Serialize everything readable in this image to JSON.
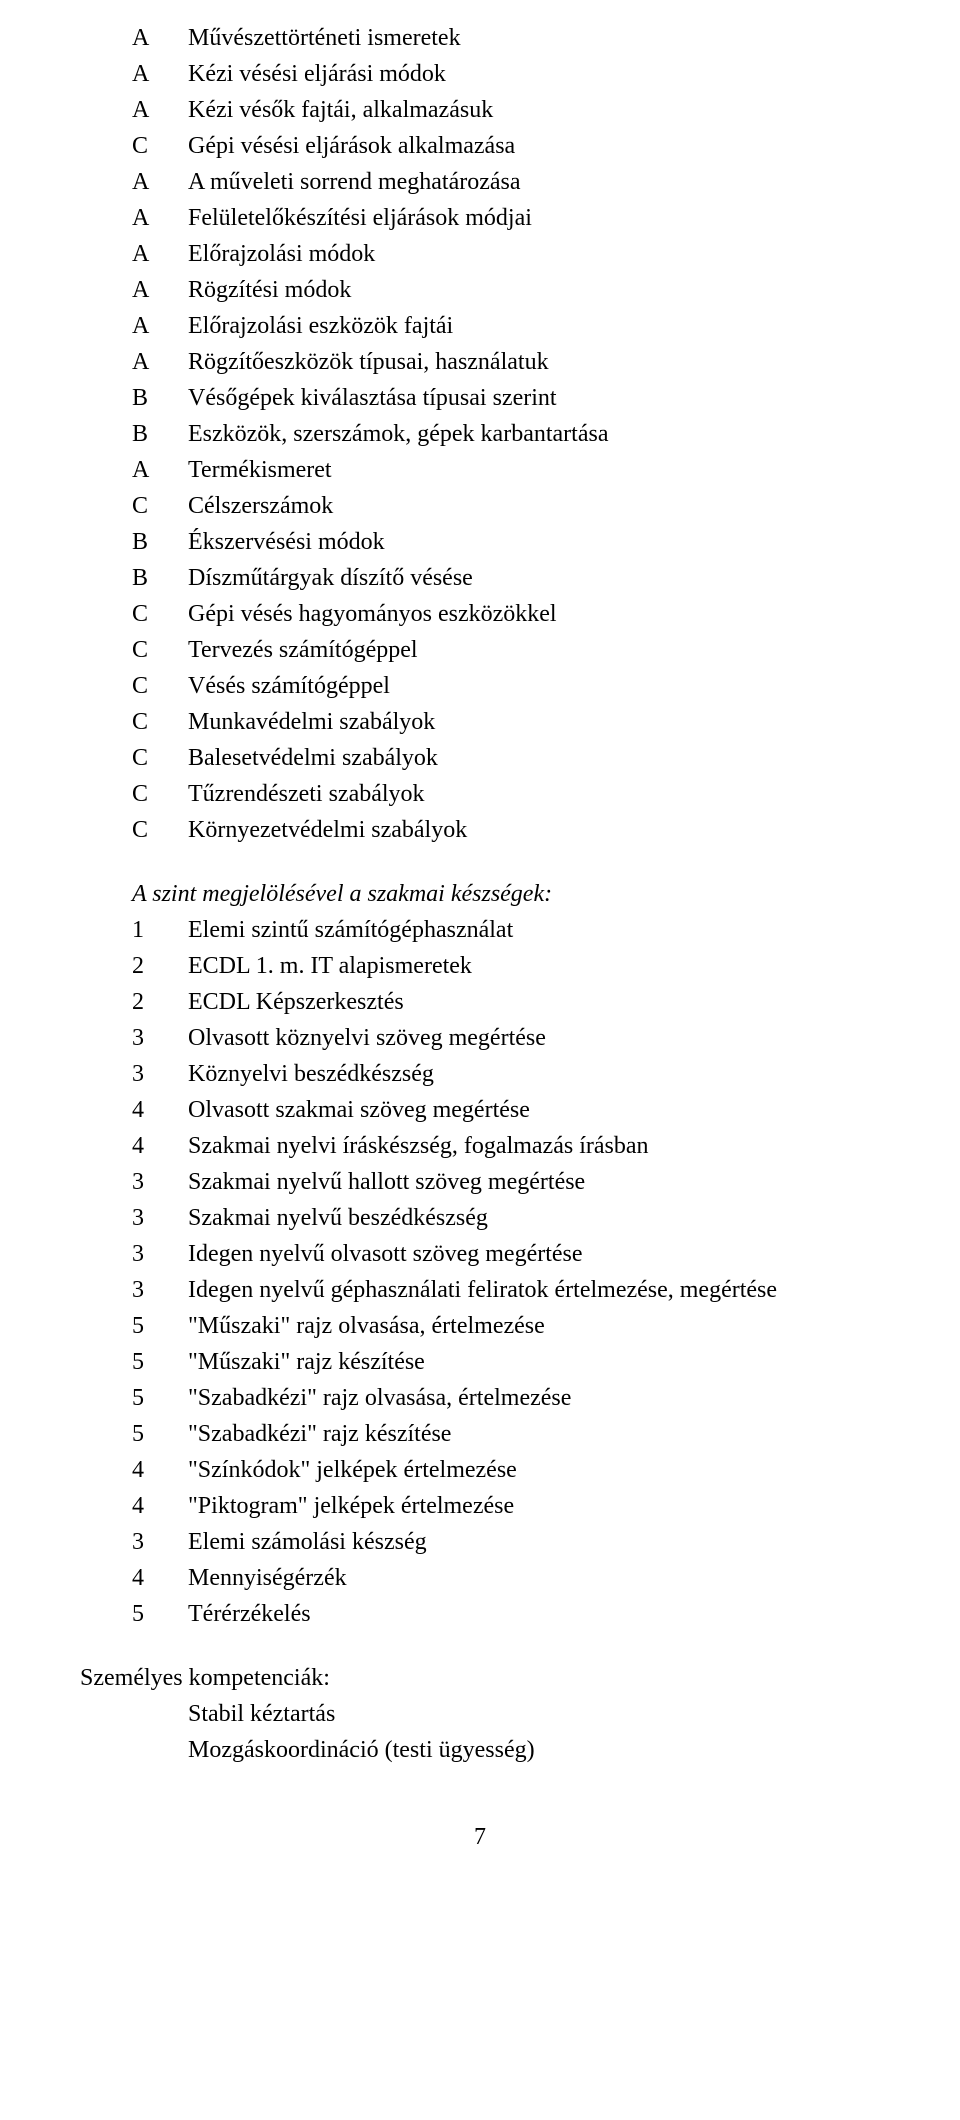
{
  "page_number": "7",
  "list1": [
    {
      "k": "A",
      "t": "Művészettörténeti ismeretek"
    },
    {
      "k": "A",
      "t": "Kézi vésési eljárási módok"
    },
    {
      "k": "A",
      "t": "Kézi vésők fajtái, alkalmazásuk"
    },
    {
      "k": "C",
      "t": "Gépi vésési eljárások alkalmazása"
    },
    {
      "k": "A",
      "t": "A műveleti sorrend meghatározása"
    },
    {
      "k": "A",
      "t": "Felületelőkészítési eljárások módjai"
    },
    {
      "k": "A",
      "t": "Előrajzolási módok"
    },
    {
      "k": "A",
      "t": "Rögzítési módok"
    },
    {
      "k": "A",
      "t": "Előrajzolási eszközök fajtái"
    },
    {
      "k": "A",
      "t": "Rögzítőeszközök típusai, használatuk"
    },
    {
      "k": "B",
      "t": "Vésőgépek kiválasztása típusai szerint"
    },
    {
      "k": "B",
      "t": "Eszközök, szerszámok, gépek karbantartása"
    },
    {
      "k": "A",
      "t": "Termékismeret"
    },
    {
      "k": "C",
      "t": "Célszerszámok"
    },
    {
      "k": "B",
      "t": "Ékszervésési módok"
    },
    {
      "k": "B",
      "t": "Díszműtárgyak díszítő vésése"
    },
    {
      "k": "C",
      "t": "Gépi vésés hagyományos eszközökkel"
    },
    {
      "k": "C",
      "t": "Tervezés számítógéppel"
    },
    {
      "k": "C",
      "t": "Vésés számítógéppel"
    },
    {
      "k": "C",
      "t": "Munkavédelmi szabályok"
    },
    {
      "k": "C",
      "t": "Balesetvédelmi szabályok"
    },
    {
      "k": "C",
      "t": "Tűzrendészeti szabályok"
    },
    {
      "k": "C",
      "t": "Környezetvédelmi szabályok"
    }
  ],
  "heading2": "A szint megjelölésével a szakmai készségek:",
  "list2": [
    {
      "k": "1",
      "t": "Elemi szintű számítógéphasználat"
    },
    {
      "k": "2",
      "t": "ECDL 1. m. IT alapismeretek"
    },
    {
      "k": "2",
      "t": "ECDL Képszerkesztés"
    },
    {
      "k": "3",
      "t": "Olvasott köznyelvi szöveg megértése"
    },
    {
      "k": "3",
      "t": "Köznyelvi beszédkészség"
    },
    {
      "k": "4",
      "t": "Olvasott szakmai szöveg megértése"
    },
    {
      "k": "4",
      "t": "Szakmai nyelvi íráskészség, fogalmazás írásban"
    },
    {
      "k": "3",
      "t": "Szakmai nyelvű hallott szöveg megértése"
    },
    {
      "k": "3",
      "t": "Szakmai nyelvű beszédkészség"
    },
    {
      "k": "3",
      "t": "Idegen nyelvű olvasott szöveg megértése"
    },
    {
      "k": "3",
      "t": "Idegen nyelvű géphasználati feliratok értelmezése, megértése"
    },
    {
      "k": "5",
      "t": "\"Műszaki\" rajz olvasása, értelmezése"
    },
    {
      "k": "5",
      "t": "\"Műszaki\" rajz készítése"
    },
    {
      "k": "5",
      "t": "\"Szabadkézi\" rajz olvasása, értelmezése"
    },
    {
      "k": "5",
      "t": "\"Szabadkézi\" rajz készítése"
    },
    {
      "k": "4",
      "t": "\"Színkódok\" jelképek értelmezése"
    },
    {
      "k": "4",
      "t": "\"Piktogram\" jelképek értelmezése"
    },
    {
      "k": "3",
      "t": "Elemi számolási készség"
    },
    {
      "k": "4",
      "t": "Mennyiségérzék"
    },
    {
      "k": "5",
      "t": "Térérzékelés"
    }
  ],
  "heading3": "Személyes kompetenciák:",
  "sub3": [
    "Stabil kéztartás",
    "Mozgáskoordináció  (testi ügyesség)"
  ]
}
